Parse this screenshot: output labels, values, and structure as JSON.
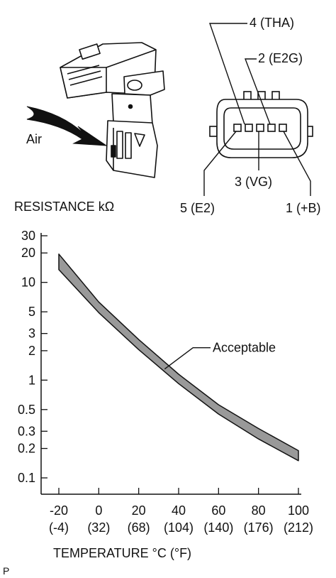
{
  "sensor": {
    "air_label": "Air"
  },
  "connector": {
    "pins": [
      {
        "label": "4 (THA)"
      },
      {
        "label": "2 (E2G)"
      },
      {
        "label": "3 (VG)"
      },
      {
        "label": "5 (E2)"
      },
      {
        "label": "1 (+B)"
      }
    ]
  },
  "chart_data": {
    "type": "area",
    "ylabel": "RESISTANCE kΩ",
    "xlabel": "TEMPERATURE °C (°F)",
    "yscale": "log",
    "ylim": [
      0.1,
      30
    ],
    "xlim": [
      -20,
      100
    ],
    "yticks": [
      {
        "value": 30,
        "label": "30"
      },
      {
        "value": 20,
        "label": "20"
      },
      {
        "value": 10,
        "label": "10"
      },
      {
        "value": 5,
        "label": "5"
      },
      {
        "value": 3,
        "label": "3"
      },
      {
        "value": 2,
        "label": "2"
      },
      {
        "value": 1,
        "label": "1"
      },
      {
        "value": 0.5,
        "label": "0.5"
      },
      {
        "value": 0.3,
        "label": "0.3"
      },
      {
        "value": 0.2,
        "label": "0.2"
      },
      {
        "value": 0.1,
        "label": "0.1"
      }
    ],
    "xticks": [
      {
        "value": -20,
        "label": "-20",
        "sub": "(-4)"
      },
      {
        "value": 0,
        "label": "0",
        "sub": "(32)"
      },
      {
        "value": 20,
        "label": "20",
        "sub": "(68)"
      },
      {
        "value": 40,
        "label": "40",
        "sub": "(104)"
      },
      {
        "value": 60,
        "label": "60",
        "sub": "(140)"
      },
      {
        "value": 80,
        "label": "80",
        "sub": "(176)"
      },
      {
        "value": 100,
        "label": "100",
        "sub": "(212)"
      }
    ],
    "band": {
      "name": "Acceptable",
      "x": [
        -20,
        0,
        20,
        40,
        60,
        80,
        100
      ],
      "upper": [
        19.5,
        6.3,
        2.6,
        1.15,
        0.56,
        0.32,
        0.19
      ],
      "lower": [
        13.5,
        4.9,
        2.05,
        0.92,
        0.45,
        0.25,
        0.15
      ]
    },
    "annotation": "Acceptable",
    "fill_color": "#999999"
  },
  "footer": {
    "figure_code": "P"
  }
}
